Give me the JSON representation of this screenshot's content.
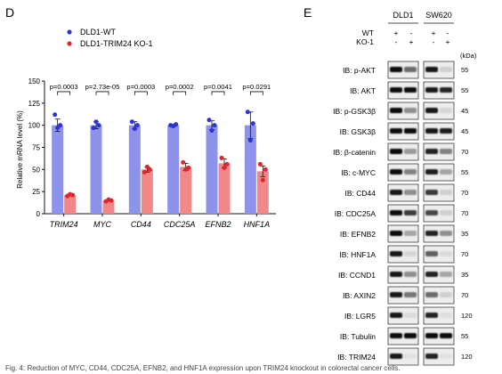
{
  "panel_d_label": "D",
  "panel_e_label": "E",
  "chart_data": {
    "type": "bar",
    "ylabel": "Relative mRNA level (%)",
    "ylim": [
      0,
      150
    ],
    "yticks": [
      0,
      25,
      50,
      75,
      100,
      125,
      150
    ],
    "categories": [
      "TRIM24",
      "MYC",
      "CD44",
      "CDC25A",
      "EFNB2",
      "HNF1A"
    ],
    "series": [
      {
        "name": "DLD1-WT",
        "color": "#8d93ea",
        "dot_color": "#2b35d6",
        "values": [
          100,
          100,
          100,
          100,
          100,
          100
        ],
        "errors": [
          7,
          4,
          4,
          1,
          5,
          15
        ],
        "points": [
          [
            112,
            97,
            100
          ],
          [
            97,
            104,
            100
          ],
          [
            104,
            96,
            100
          ],
          [
            100,
            99,
            101
          ],
          [
            106,
            94,
            100
          ],
          [
            115,
            83,
            102
          ]
        ]
      },
      {
        "name": "DLD1-TRIM24 KO-1",
        "color": "#f0888a",
        "dot_color": "#e0242c",
        "values": [
          21,
          15,
          50,
          53,
          57,
          48
        ],
        "errors": [
          1,
          1,
          3,
          4,
          5,
          6
        ],
        "points": [
          [
            20,
            22,
            21
          ],
          [
            14,
            16,
            15
          ],
          [
            47,
            53,
            50
          ],
          [
            58,
            50,
            52
          ],
          [
            63,
            52,
            56
          ],
          [
            56,
            38,
            50
          ]
        ]
      }
    ],
    "pvalues": [
      "p=0.0003",
      "p=2.73e-05",
      "p=0.0003",
      "p=0.0002",
      "p=0.0041",
      "p=0.0291"
    ]
  },
  "blot": {
    "cell_lines": [
      "DLD1",
      "SW620"
    ],
    "conditions": [
      {
        "label": "WT",
        "marks": [
          "+",
          "-",
          "+",
          "-"
        ]
      },
      {
        "label": "KO-1",
        "marks": [
          "-",
          "+",
          "-",
          "+"
        ]
      }
    ],
    "kda_header": "(kDa)",
    "rows": [
      {
        "label": "IB: p-AKT",
        "kda": "55",
        "i": [
          0.95,
          0.55,
          0.9,
          0.12
        ]
      },
      {
        "label": "IB: AKT",
        "kda": "55",
        "i": [
          0.95,
          0.95,
          0.9,
          0.85
        ]
      },
      {
        "label": "IB: p-GSK3β",
        "kda": "45",
        "i": [
          0.95,
          0.4,
          0.9,
          0.1
        ]
      },
      {
        "label": "IB: GSK3β",
        "kda": "45",
        "i": [
          0.95,
          0.95,
          0.9,
          0.88
        ]
      },
      {
        "label": "IB: β-catenin",
        "kda": "70",
        "i": [
          0.95,
          0.35,
          0.85,
          0.45
        ]
      },
      {
        "label": "IB: c-MYC",
        "kda": "55",
        "i": [
          0.95,
          0.45,
          0.88,
          0.3
        ]
      },
      {
        "label": "IB: CD44",
        "kda": "70",
        "i": [
          0.9,
          0.4,
          0.75,
          0.12
        ]
      },
      {
        "label": "IB: CDC25A",
        "kda": "70",
        "i": [
          0.95,
          0.75,
          0.7,
          0.12
        ]
      },
      {
        "label": "IB: EFNB2",
        "kda": "35",
        "i": [
          0.95,
          0.3,
          0.85,
          0.4
        ]
      },
      {
        "label": "IB: HNF1A",
        "kda": "70",
        "i": [
          0.9,
          0.1,
          0.6,
          0.08
        ]
      },
      {
        "label": "IB: CCND1",
        "kda": "35",
        "i": [
          0.9,
          0.4,
          0.85,
          0.3
        ]
      },
      {
        "label": "IB: AXIN2",
        "kda": "70",
        "i": [
          0.9,
          0.5,
          0.55,
          0.12
        ]
      },
      {
        "label": "IB: LGR5",
        "kda": "120",
        "i": [
          0.9,
          0.08,
          0.85,
          0.06
        ]
      },
      {
        "label": "IB: Tubulin",
        "kda": "55",
        "i": [
          0.95,
          0.95,
          0.95,
          0.95
        ]
      },
      {
        "label": "IB: TRIM24",
        "kda": "120",
        "i": [
          0.9,
          0.05,
          0.85,
          0.05
        ]
      }
    ]
  },
  "caption": "Fig. 4: Reduction of MYC, CD44, CDC25A, EFNB2, and HNF1A expression upon TRIM24 knockout in colorectal cancer cells."
}
